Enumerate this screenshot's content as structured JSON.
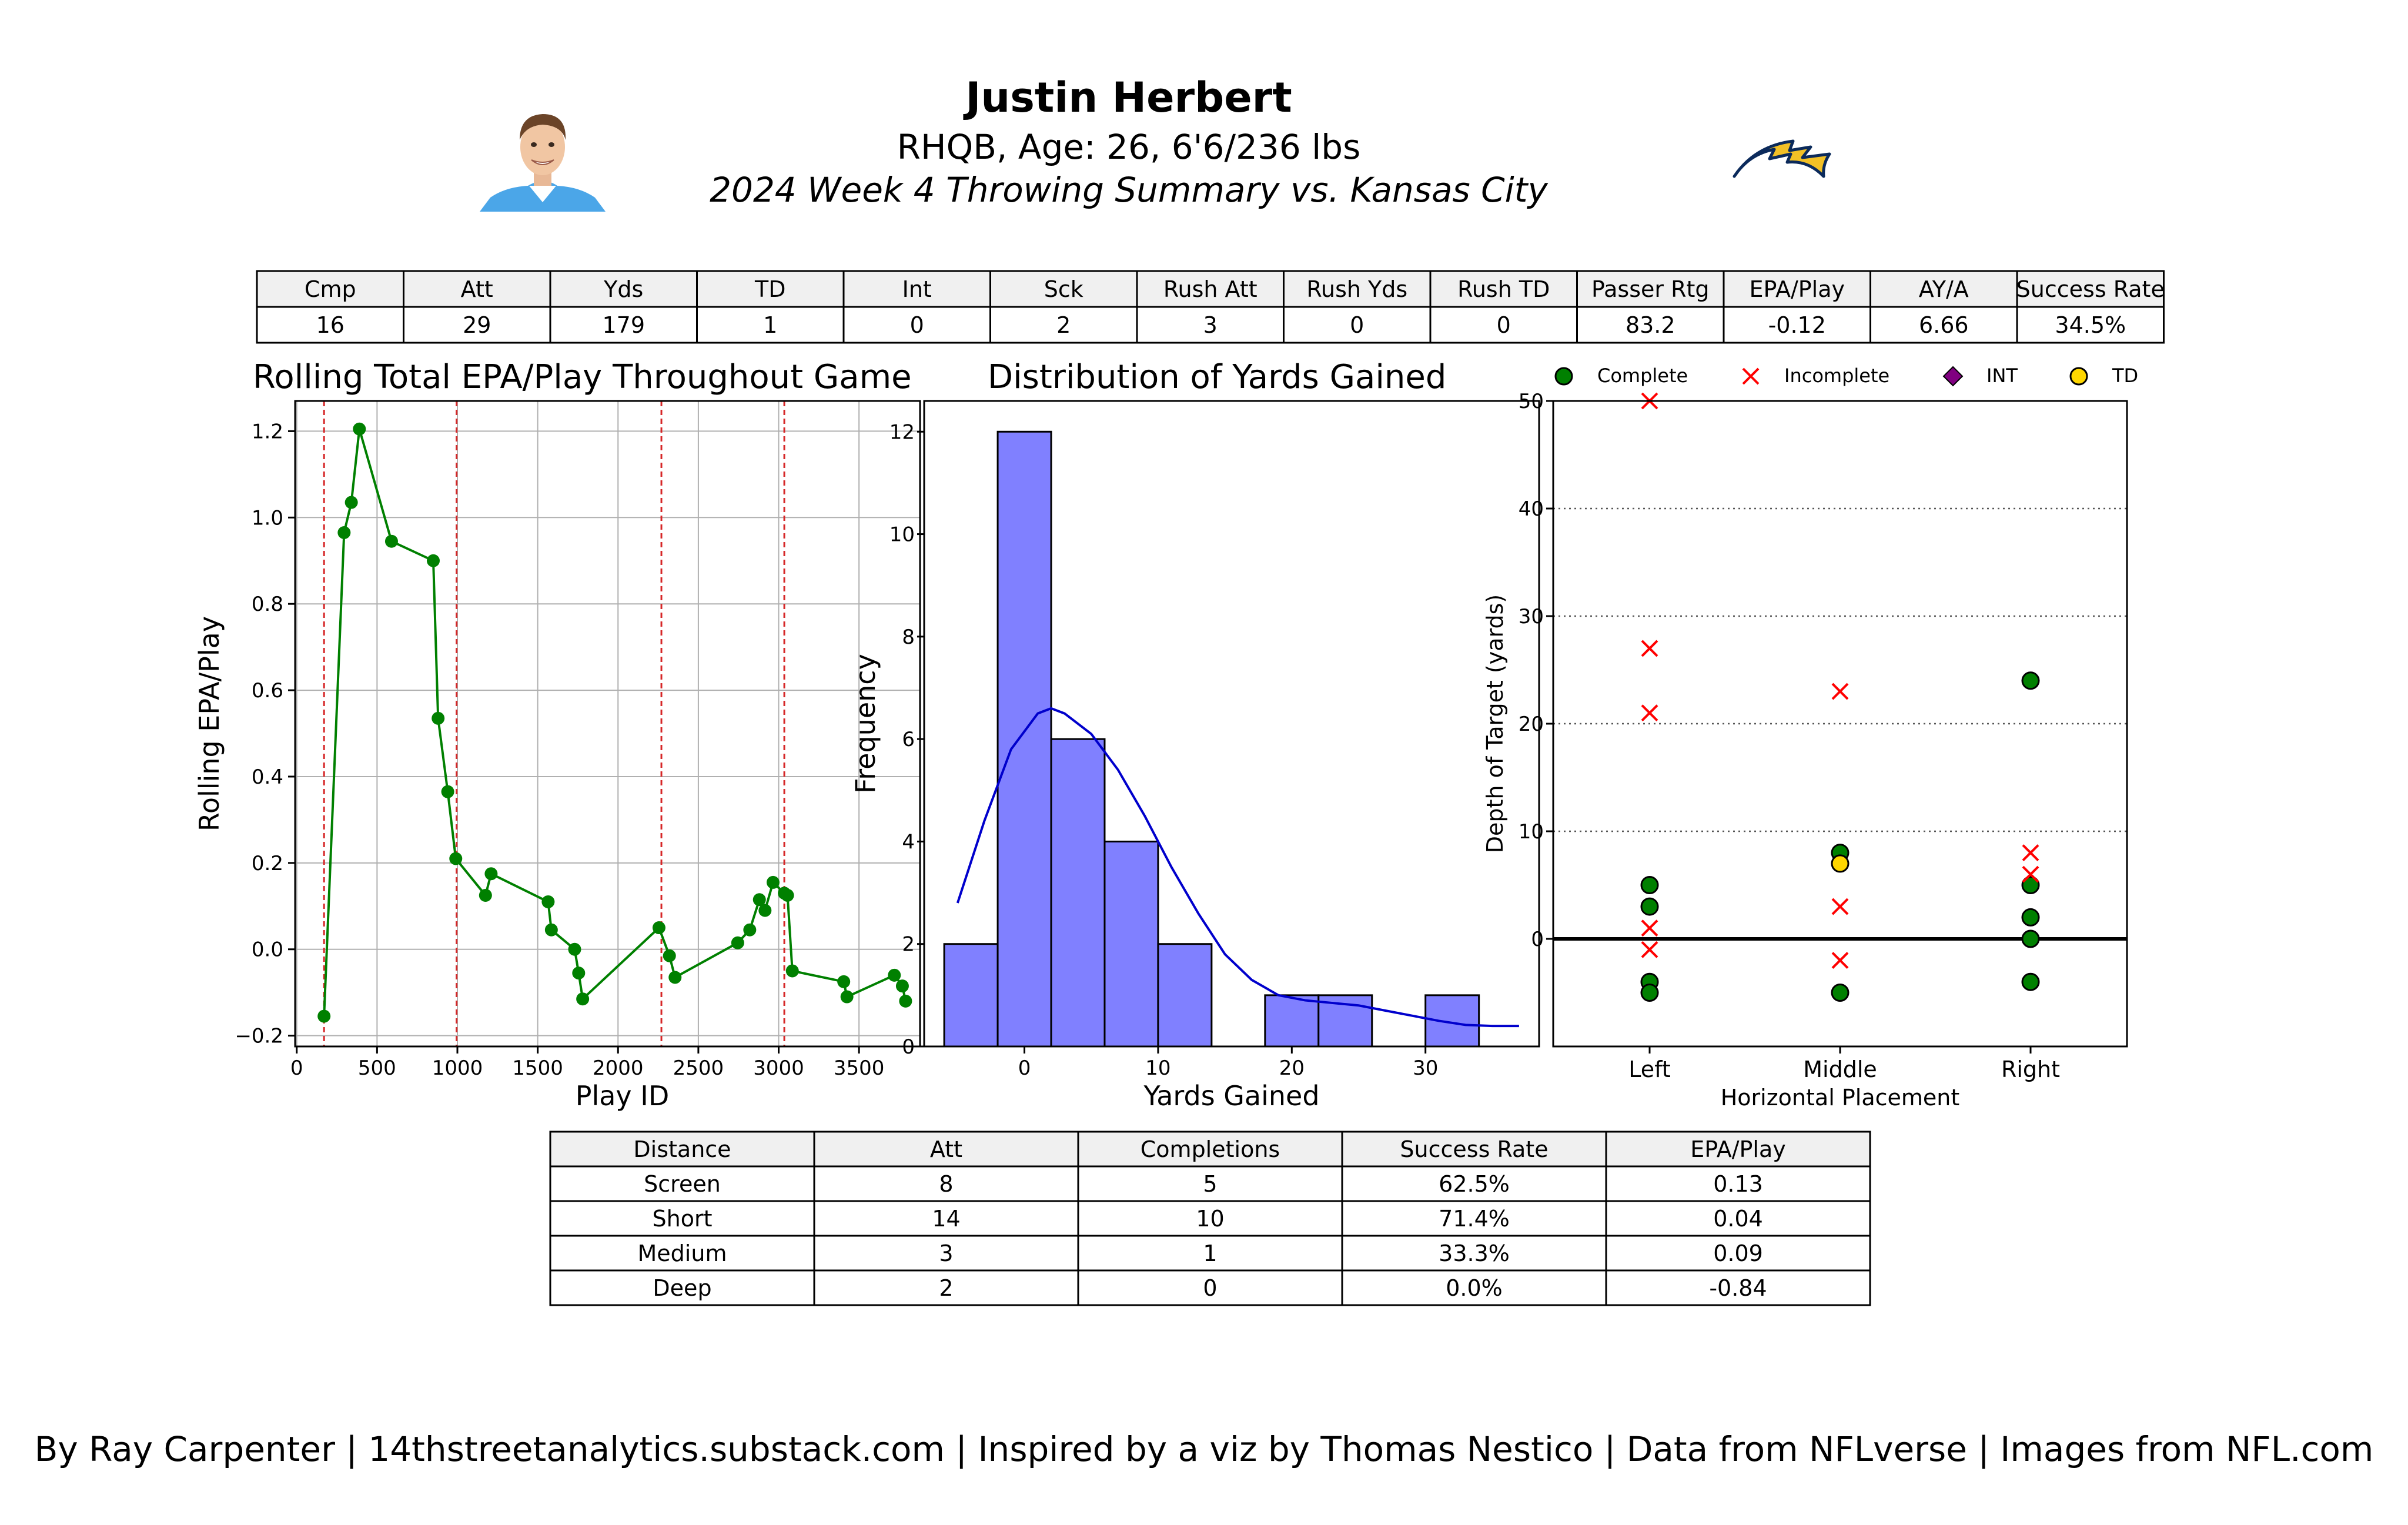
{
  "header": {
    "player_name": "Justin Herbert",
    "bio_line": "RHQB, Age: 26, 6'6/236 lbs",
    "summary_line": "2024 Week 4 Throwing Summary vs. Kansas City"
  },
  "team_colors": {
    "powder_blue": "#4BA6E8",
    "gold": "#F2C026",
    "navy": "#0B2A5B"
  },
  "stats_table": {
    "headers": [
      "Cmp",
      "Att",
      "Yds",
      "TD",
      "Int",
      "Sck",
      "Rush Att",
      "Rush Yds",
      "Rush TD",
      "Passer Rtg",
      "EPA/Play",
      "AY/A",
      "Success Rate"
    ],
    "values": [
      "16",
      "29",
      "179",
      "1",
      "0",
      "2",
      "3",
      "0",
      "0",
      "83.2",
      "-0.12",
      "6.66",
      "34.5%"
    ]
  },
  "distance_table": {
    "headers": [
      "Distance",
      "Att",
      "Completions",
      "Success Rate",
      "EPA/Play"
    ],
    "rows": [
      [
        "Screen",
        "8",
        "5",
        "62.5%",
        "0.13"
      ],
      [
        "Short",
        "14",
        "10",
        "71.4%",
        "0.04"
      ],
      [
        "Medium",
        "3",
        "1",
        "33.3%",
        "0.09"
      ],
      [
        "Deep",
        "2",
        "0",
        "0.0%",
        "-0.84"
      ]
    ]
  },
  "footer": "By Ray Carpenter | 14thstreetanalytics.substack.com | Inspired by a viz by Thomas Nestico | Data from NFLverse | Images from NFL.com",
  "chart_data": [
    {
      "type": "line",
      "title": "Rolling Total EPA/Play Throughout Game",
      "xlabel": "Play ID",
      "ylabel": "Rolling EPA/Play",
      "xlim": [
        -10,
        3880
      ],
      "ylim": [
        -0.225,
        1.27
      ],
      "xticks": [
        0,
        500,
        1000,
        1500,
        2000,
        2500,
        3000,
        3500
      ],
      "yticks": [
        -0.2,
        0.0,
        0.2,
        0.4,
        0.6,
        0.8,
        1.0,
        1.2
      ],
      "grid": true,
      "line_color": "#008000",
      "quarter_lines": [
        170,
        995,
        2270,
        3035
      ],
      "quarter_line_color": "#d62728",
      "x": [
        170,
        295,
        340,
        390,
        590,
        850,
        880,
        940,
        990,
        1175,
        1210,
        1565,
        1585,
        1730,
        1755,
        1780,
        2255,
        2320,
        2355,
        2745,
        2820,
        2880,
        2915,
        2965,
        3035,
        3055,
        3085,
        3405,
        3425,
        3720,
        3770,
        3790
      ],
      "y": [
        -0.155,
        0.965,
        1.035,
        1.205,
        0.945,
        0.9,
        0.535,
        0.365,
        0.21,
        0.125,
        0.175,
        0.11,
        0.045,
        0.0,
        -0.055,
        -0.115,
        0.05,
        -0.015,
        -0.065,
        0.015,
        0.045,
        0.115,
        0.09,
        0.155,
        0.13,
        0.125,
        -0.05,
        -0.075,
        -0.11,
        -0.06,
        -0.085,
        -0.12
      ]
    },
    {
      "type": "bar",
      "title": "Distribution of Yards Gained",
      "xlabel": "Yards Gained",
      "ylabel": "Frequency",
      "xlim": [
        -7.5,
        38.5
      ],
      "ylim": [
        0,
        12.6
      ],
      "xticks": [
        0,
        10,
        20,
        30
      ],
      "yticks": [
        0,
        2,
        4,
        6,
        8,
        10,
        12
      ],
      "bin_edges": [
        -6,
        -2,
        2,
        6,
        10,
        14,
        18,
        22,
        26,
        30,
        34,
        38
      ],
      "values": [
        2,
        12,
        6,
        4,
        2,
        0,
        1,
        1,
        0,
        1,
        0
      ],
      "bar_color": "#8080ff",
      "kde_color": "#0000cc",
      "kde": {
        "x": [
          -5,
          -3,
          -1,
          1,
          2,
          3,
          5,
          7,
          9,
          11,
          13,
          15,
          17,
          19,
          21,
          23,
          25,
          27,
          29,
          31,
          33,
          35,
          37
        ],
        "y": [
          2.8,
          4.4,
          5.8,
          6.5,
          6.6,
          6.5,
          6.1,
          5.4,
          4.5,
          3.5,
          2.6,
          1.8,
          1.3,
          1.0,
          0.9,
          0.85,
          0.8,
          0.7,
          0.6,
          0.5,
          0.42,
          0.4,
          0.4
        ]
      }
    },
    {
      "type": "scatter",
      "xlabel": "Horizontal Placement",
      "ylabel": "Depth of Target (yards)",
      "categories": [
        "Left",
        "Middle",
        "Right"
      ],
      "ylim": [
        -10,
        50
      ],
      "yticks": [
        0,
        10,
        20,
        30,
        40,
        50
      ],
      "legend": [
        "Complete",
        "Incomplete",
        "INT",
        "TD"
      ],
      "legend_colors": {
        "Complete": "#008000",
        "Incomplete": "#ff0000",
        "INT": "#800080",
        "TD": "#ffd700"
      },
      "legend_placement": "top",
      "series": [
        {
          "name": "Complete",
          "points": [
            [
              "Left",
              5
            ],
            [
              "Left",
              3
            ],
            [
              "Left",
              -4
            ],
            [
              "Left",
              -5
            ],
            [
              "Middle",
              8
            ],
            [
              "Middle",
              -5
            ],
            [
              "Right",
              24
            ],
            [
              "Right",
              5
            ],
            [
              "Right",
              2
            ],
            [
              "Right",
              0
            ],
            [
              "Right",
              -4
            ]
          ]
        },
        {
          "name": "Incomplete",
          "points": [
            [
              "Left",
              50
            ],
            [
              "Left",
              27
            ],
            [
              "Left",
              21
            ],
            [
              "Left",
              1
            ],
            [
              "Left",
              -1
            ],
            [
              "Middle",
              23
            ],
            [
              "Middle",
              3
            ],
            [
              "Middle",
              -2
            ],
            [
              "Right",
              8
            ],
            [
              "Right",
              6
            ]
          ]
        },
        {
          "name": "INT",
          "points": []
        },
        {
          "name": "TD",
          "points": [
            [
              "Middle",
              7
            ]
          ]
        }
      ]
    }
  ]
}
